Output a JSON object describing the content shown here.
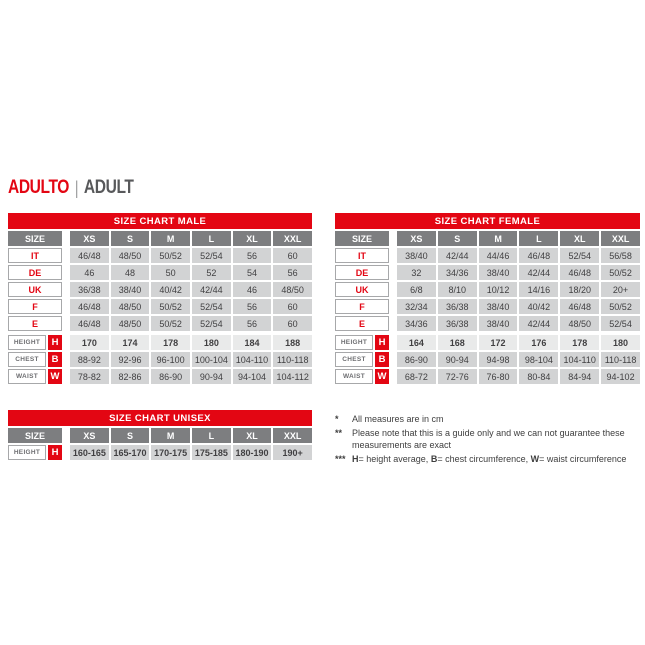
{
  "page": {
    "title_primary": "ADULTO",
    "title_separator": "|",
    "title_secondary": "ADULT"
  },
  "colors": {
    "accent_red": "#E30613",
    "header_gray": "#7D7E80",
    "cell_gray": "#D2D3D4",
    "text_dark": "#414042"
  },
  "tables": {
    "male": {
      "title": "SIZE CHART MALE",
      "size_header": "SIZE",
      "columns": [
        "XS",
        "S",
        "M",
        "L",
        "XL",
        "XXL"
      ],
      "size_rows": [
        {
          "label": "IT",
          "values": [
            "46/48",
            "48/50",
            "50/52",
            "52/54",
            "56",
            "60"
          ]
        },
        {
          "label": "DE",
          "values": [
            "46",
            "48",
            "50",
            "52",
            "54",
            "56"
          ]
        },
        {
          "label": "UK",
          "values": [
            "36/38",
            "38/40",
            "40/42",
            "42/44",
            "46",
            "48/50"
          ]
        },
        {
          "label": "F",
          "values": [
            "46/48",
            "48/50",
            "50/52",
            "52/54",
            "56",
            "60"
          ]
        },
        {
          "label": "E",
          "values": [
            "46/48",
            "48/50",
            "50/52",
            "52/54",
            "56",
            "60"
          ]
        }
      ],
      "measure_rows": [
        {
          "label": "HEIGHT",
          "badge": "H",
          "bold": true,
          "light": true,
          "values": [
            "170",
            "174",
            "178",
            "180",
            "184",
            "188"
          ]
        },
        {
          "label": "CHEST",
          "badge": "B",
          "bold": false,
          "light": false,
          "values": [
            "88-92",
            "92-96",
            "96-100",
            "100-104",
            "104-110",
            "110-118"
          ]
        },
        {
          "label": "WAIST",
          "badge": "W",
          "bold": false,
          "light": false,
          "values": [
            "78-82",
            "82-86",
            "86-90",
            "90-94",
            "94-104",
            "104-112"
          ]
        }
      ]
    },
    "female": {
      "title": "SIZE CHART FEMALE",
      "size_header": "SIZE",
      "columns": [
        "XS",
        "S",
        "M",
        "L",
        "XL",
        "XXL"
      ],
      "size_rows": [
        {
          "label": "IT",
          "values": [
            "38/40",
            "42/44",
            "44/46",
            "46/48",
            "52/54",
            "56/58"
          ]
        },
        {
          "label": "DE",
          "values": [
            "32",
            "34/36",
            "38/40",
            "42/44",
            "46/48",
            "50/52"
          ]
        },
        {
          "label": "UK",
          "values": [
            "6/8",
            "8/10",
            "10/12",
            "14/16",
            "18/20",
            "20+"
          ]
        },
        {
          "label": "F",
          "values": [
            "32/34",
            "36/38",
            "38/40",
            "40/42",
            "46/48",
            "50/52"
          ]
        },
        {
          "label": "E",
          "values": [
            "34/36",
            "36/38",
            "38/40",
            "42/44",
            "48/50",
            "52/54"
          ]
        }
      ],
      "measure_rows": [
        {
          "label": "HEIGHT",
          "badge": "H",
          "bold": true,
          "light": true,
          "values": [
            "164",
            "168",
            "172",
            "176",
            "178",
            "180"
          ]
        },
        {
          "label": "CHEST",
          "badge": "B",
          "bold": false,
          "light": false,
          "values": [
            "86-90",
            "90-94",
            "94-98",
            "98-104",
            "104-110",
            "110-118"
          ]
        },
        {
          "label": "WAIST",
          "badge": "W",
          "bold": false,
          "light": false,
          "values": [
            "68-72",
            "72-76",
            "76-80",
            "80-84",
            "84-94",
            "94-102"
          ]
        }
      ]
    },
    "unisex": {
      "title": "SIZE CHART UNISEX",
      "size_header": "SIZE",
      "columns": [
        "XS",
        "S",
        "M",
        "L",
        "XL",
        "XXL"
      ],
      "size_rows": [],
      "measure_rows": [
        {
          "label": "HEIGHT",
          "badge": "H",
          "bold": true,
          "light": false,
          "values": [
            "160-165",
            "165-170",
            "170-175",
            "175-185",
            "180-190",
            "190+"
          ]
        }
      ]
    }
  },
  "footnotes": [
    {
      "marker": "*",
      "parts": [
        {
          "text": "All measures are in cm",
          "bold": false
        }
      ]
    },
    {
      "marker": "**",
      "parts": [
        {
          "text": "Please note that this is a guide only and we can not guarantee these measurements are exact",
          "bold": false
        }
      ]
    },
    {
      "marker": "***",
      "parts": [
        {
          "text": "H",
          "bold": true
        },
        {
          "text": "= height average, ",
          "bold": false
        },
        {
          "text": "B",
          "bold": true
        },
        {
          "text": "= chest circumference, ",
          "bold": false
        },
        {
          "text": "W",
          "bold": true
        },
        {
          "text": "= waist circumference",
          "bold": false
        }
      ]
    }
  ]
}
